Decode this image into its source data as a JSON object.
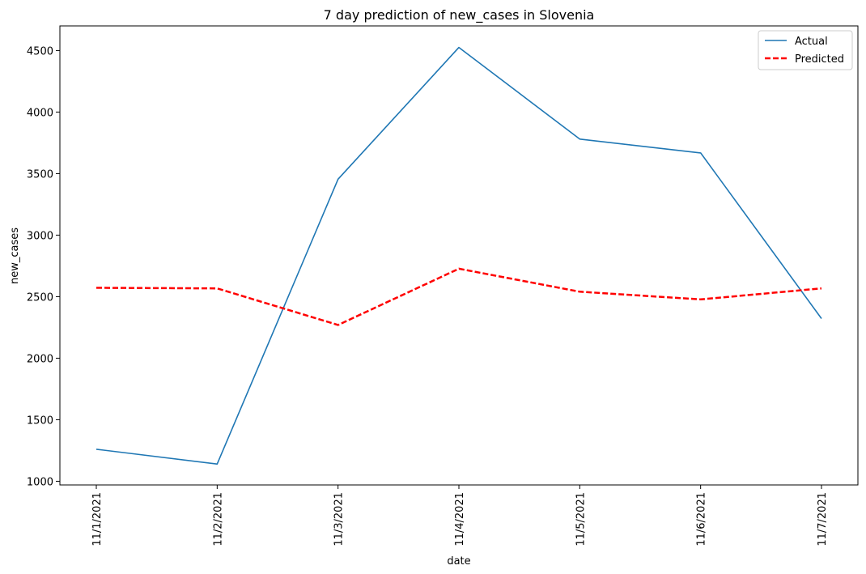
{
  "chart_data": {
    "type": "line",
    "title": "7 day prediction of new_cases in Slovenia",
    "xlabel": "date",
    "ylabel": "new_cases",
    "categories": [
      "11/1/2021",
      "11/2/2021",
      "11/3/2021",
      "11/4/2021",
      "11/5/2021",
      "11/6/2021",
      "11/7/2021"
    ],
    "yticks": [
      1000,
      1500,
      2000,
      2500,
      3000,
      3500,
      4000,
      4500
    ],
    "ylim": [
      970,
      4700
    ],
    "grid": false,
    "legend_position": "top-right",
    "series": [
      {
        "name": "Actual",
        "color": "#1f77b4",
        "style": "solid",
        "values": [
          1260,
          1140,
          3455,
          4525,
          3780,
          3668,
          2322
        ]
      },
      {
        "name": "Predicted",
        "color": "#ff0000",
        "style": "dashed",
        "values": [
          2572,
          2567,
          2270,
          2727,
          2540,
          2478,
          2567
        ]
      }
    ]
  }
}
